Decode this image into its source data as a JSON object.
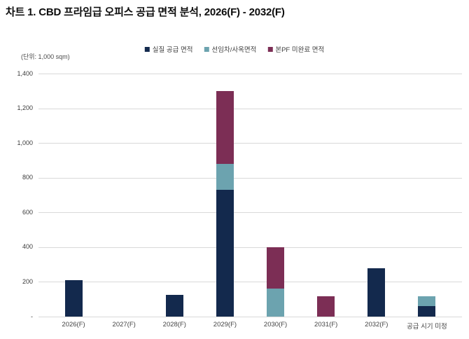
{
  "chart_data": {
    "type": "bar",
    "stacked": true,
    "title": "차트 1. CBD 프라임급 오피스 공급 면적 분석, 2026(F) - 2032(F)",
    "unit_label": "(단위: 1,000 sqm)",
    "categories": [
      "2026(F)",
      "2027(F)",
      "2028(F)",
      "2029(F)",
      "2030(F)",
      "2031(F)",
      "2032(F)",
      "공급 시기 미정"
    ],
    "series": [
      {
        "name": "실질 공급 면적",
        "color": "#13294d",
        "values": [
          210,
          0,
          125,
          730,
          0,
          0,
          280,
          60
        ]
      },
      {
        "name": "선임차/사옥면적",
        "color": "#6ca3af",
        "values": [
          0,
          0,
          0,
          150,
          160,
          0,
          0,
          55
        ]
      },
      {
        "name": "본PF 미완료 면적",
        "color": "#7c2e55",
        "values": [
          0,
          0,
          0,
          420,
          240,
          115,
          0,
          0
        ]
      }
    ],
    "totals": [
      210,
      0,
      125,
      1300,
      400,
      115,
      280,
      115
    ],
    "ylim": [
      0,
      1400
    ],
    "ytick_step": 200,
    "ytick_labels_bottom_to_top": [
      "-",
      "200",
      "400",
      "600",
      "800",
      "1,000",
      "1,200",
      "1,400"
    ],
    "grid": true,
    "legend_position": "top",
    "colors": {
      "gridline": "#d9d9d9",
      "axis_text": "#3c3c3c",
      "title_text": "#0d0d0d"
    }
  }
}
